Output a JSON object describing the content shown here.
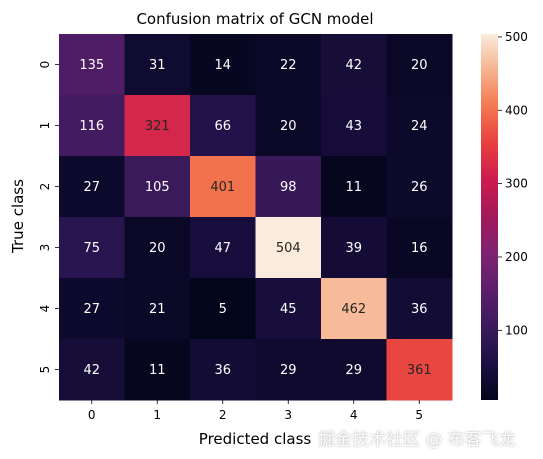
{
  "chart_data": {
    "type": "heatmap",
    "title": "Confusion matrix of GCN model",
    "xlabel": "Predicted class",
    "ylabel": "True class",
    "x_categories": [
      "0",
      "1",
      "2",
      "3",
      "4",
      "5"
    ],
    "y_categories": [
      "0",
      "1",
      "2",
      "3",
      "4",
      "5"
    ],
    "values": [
      [
        135,
        31,
        14,
        22,
        42,
        20
      ],
      [
        116,
        321,
        66,
        20,
        43,
        24
      ],
      [
        27,
        105,
        401,
        98,
        11,
        26
      ],
      [
        75,
        20,
        47,
        504,
        39,
        16
      ],
      [
        27,
        21,
        5,
        45,
        462,
        36
      ],
      [
        42,
        11,
        36,
        29,
        29,
        361
      ]
    ],
    "color_range": [
      5,
      504
    ],
    "colormap": "rocket",
    "colorbar_ticks": [
      100,
      200,
      300,
      400,
      500
    ],
    "annotated": true
  },
  "watermark": "掘金技术社区 @ 布客飞龙"
}
